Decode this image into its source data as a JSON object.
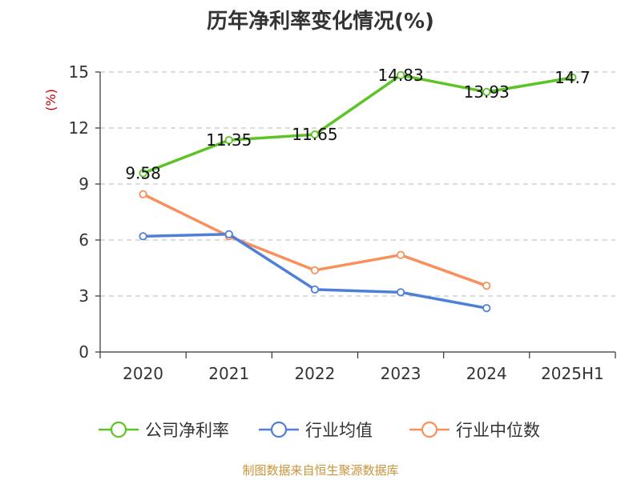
{
  "chart_data": {
    "type": "line",
    "title": "历年净利率变化情况(%)",
    "ylabel": "(%)",
    "xlabel": "",
    "categories": [
      "2020",
      "2021",
      "2022",
      "2023",
      "2024",
      "2025H1"
    ],
    "ylim": [
      0,
      15
    ],
    "yticks": [
      0,
      3,
      6,
      9,
      12,
      15
    ],
    "grid": true,
    "legend_position": "bottom",
    "series": [
      {
        "name": "公司净利率",
        "color": "#5ec327",
        "values": [
          9.58,
          11.35,
          11.65,
          14.83,
          13.93,
          14.7
        ],
        "labels": [
          "9.58",
          "11.35",
          "11.65",
          "14.83",
          "13.93",
          "14.7"
        ]
      },
      {
        "name": "行业均值",
        "color": "#4f7fd9",
        "values": [
          6.2,
          6.31,
          3.35,
          3.2,
          2.35,
          null
        ]
      },
      {
        "name": "行业中位数",
        "color": "#f7905a",
        "values": [
          8.45,
          6.2,
          4.38,
          5.2,
          3.55,
          null
        ]
      }
    ]
  },
  "source": "制图数据来自恒生聚源数据库"
}
